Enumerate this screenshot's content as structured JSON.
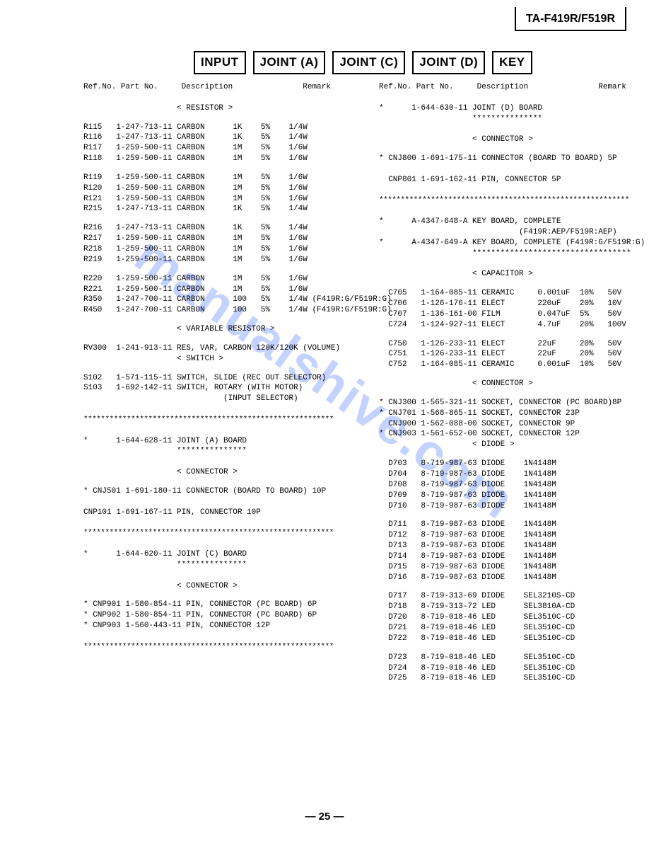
{
  "model": "TA-F419R/F519R",
  "tabs": [
    "INPUT",
    "JOINT (A)",
    "JOINT (C)",
    "JOINT (D)",
    "KEY"
  ],
  "watermark": "manualshive.com",
  "pageNumber": "— 25 —",
  "headers": {
    "refNo": "Ref.No.",
    "partNo": "Part No.",
    "description": "Description",
    "remark": "Remark"
  },
  "leftColumn": {
    "sections": [
      {
        "type": "heading",
        "text": "< RESISTOR >"
      },
      {
        "type": "rows",
        "rows": [
          [
            "R115",
            "1-247-713-11",
            "CARBON",
            "1K",
            "5%",
            "1/4W"
          ],
          [
            "R116",
            "1-247-713-11",
            "CARBON",
            "1K",
            "5%",
            "1/4W"
          ],
          [
            "R117",
            "1-259-500-11",
            "CARBON",
            "1M",
            "5%",
            "1/6W"
          ],
          [
            "R118",
            "1-259-500-11",
            "CARBON",
            "1M",
            "5%",
            "1/6W"
          ]
        ]
      },
      {
        "type": "rows",
        "rows": [
          [
            "R119",
            "1-259-500-11",
            "CARBON",
            "1M",
            "5%",
            "1/6W"
          ],
          [
            "R120",
            "1-259-500-11",
            "CARBON",
            "1M",
            "5%",
            "1/6W"
          ],
          [
            "R121",
            "1-259-500-11",
            "CARBON",
            "1M",
            "5%",
            "1/6W"
          ],
          [
            "R215",
            "1-247-713-11",
            "CARBON",
            "1K",
            "5%",
            "1/4W"
          ]
        ]
      },
      {
        "type": "rows",
        "rows": [
          [
            "R216",
            "1-247-713-11",
            "CARBON",
            "1K",
            "5%",
            "1/4W"
          ],
          [
            "R217",
            "1-259-500-11",
            "CARBON",
            "1M",
            "5%",
            "1/6W"
          ],
          [
            "R218",
            "1-259-500-11",
            "CARBON",
            "1M",
            "5%",
            "1/6W"
          ],
          [
            "R219",
            "1-259-500-11",
            "CARBON",
            "1M",
            "5%",
            "1/6W"
          ]
        ]
      },
      {
        "type": "rows",
        "rows": [
          [
            "R220",
            "1-259-500-11",
            "CARBON",
            "1M",
            "5%",
            "1/6W"
          ],
          [
            "R221",
            "1-259-500-11",
            "CARBON",
            "1M",
            "5%",
            "1/6W"
          ],
          [
            "R350",
            "1-247-700-11",
            "CARBON",
            "100",
            "5%",
            "1/4W (F419R:G/F519R:G)"
          ],
          [
            "R450",
            "1-247-700-11",
            "CARBON",
            "100",
            "5%",
            "1/4W (F419R:G/F519R:G)"
          ]
        ]
      },
      {
        "type": "heading",
        "text": "< VARIABLE RESISTOR >"
      },
      {
        "type": "textrow",
        "text": "RV300  1-241-913-11 RES, VAR, CARBON 120K/120K (VOLUME)"
      },
      {
        "type": "heading",
        "text": "< SWITCH >"
      },
      {
        "type": "textrow",
        "text": "S102   1-571-115-11 SWITCH, SLIDE (REC OUT SELECTOR)"
      },
      {
        "type": "textrow",
        "text": "S103   1-692-142-11 SWITCH, ROTARY (WITH MOTOR)"
      },
      {
        "type": "textright",
        "text": "(INPUT SELECTOR)"
      },
      {
        "type": "sep"
      },
      {
        "type": "textrow",
        "text": "*      1-644-628-11 JOINT (A) BOARD"
      },
      {
        "type": "stars",
        "text": "***************"
      },
      {
        "type": "heading",
        "text": "< CONNECTOR >"
      },
      {
        "type": "textrow",
        "text": "* CNJ501 1-691-180-11 CONNECTOR (BOARD TO BOARD) 10P"
      },
      {
        "type": "gap"
      },
      {
        "type": "textrow",
        "text": "CNP101 1-691-167-11 PIN, CONNECTOR 10P"
      },
      {
        "type": "sep"
      },
      {
        "type": "textrow",
        "text": "*      1-644-620-11 JOINT (C) BOARD"
      },
      {
        "type": "stars",
        "text": "***************"
      },
      {
        "type": "heading",
        "text": "< CONNECTOR >"
      },
      {
        "type": "textrow",
        "text": "* CNP901 1-580-854-11 PIN, CONNECTOR (PC BOARD) 6P"
      },
      {
        "type": "textrow",
        "text": "* CNP902 1-580-854-11 PIN, CONNECTOR (PC BOARD) 6P"
      },
      {
        "type": "textrow",
        "text": "* CNP903 1-560-443-11 PIN, CONNECTOR 12P"
      },
      {
        "type": "sep"
      }
    ]
  },
  "rightColumn": {
    "sections": [
      {
        "type": "textrow",
        "text": "*      1-644-630-11 JOINT (D) BOARD"
      },
      {
        "type": "stars",
        "text": "***************"
      },
      {
        "type": "heading",
        "text": "< CONNECTOR >"
      },
      {
        "type": "textrow",
        "text": "* CNJ800 1-691-175-11 CONNECTOR (BOARD TO BOARD) 5P"
      },
      {
        "type": "gap"
      },
      {
        "type": "textrow",
        "text": "  CNP801 1-691-162-11 PIN, CONNECTOR 5P"
      },
      {
        "type": "sep"
      },
      {
        "type": "textrow",
        "text": "*      A-4347-648-A KEY BOARD, COMPLETE"
      },
      {
        "type": "textright",
        "text": "(F419R:AEP/F519R:AEP)"
      },
      {
        "type": "textrow",
        "text": "*      A-4347-649-A KEY BOARD, COMPLETE (F419R:G/F519R:G)"
      },
      {
        "type": "starsright",
        "text": "**********************************"
      },
      {
        "type": "heading",
        "text": "< CAPACITOR >"
      },
      {
        "type": "caprows",
        "rows": [
          [
            "C705",
            "1-164-085-11",
            "CERAMIC",
            "0.001uF",
            "10%",
            "50V"
          ],
          [
            "C706",
            "1-126-176-11",
            "ELECT",
            "220uF",
            "20%",
            "10V"
          ],
          [
            "C707",
            "1-136-161-00",
            "FILM",
            "0.047uF",
            "5%",
            "50V"
          ],
          [
            "C724",
            "1-124-927-11",
            "ELECT",
            "4.7uF",
            "20%",
            "100V"
          ]
        ]
      },
      {
        "type": "caprows",
        "rows": [
          [
            "C750",
            "1-126-233-11",
            "ELECT",
            "22uF",
            "20%",
            "50V"
          ],
          [
            "C751",
            "1-126-233-11",
            "ELECT",
            "22uF",
            "20%",
            "50V"
          ],
          [
            "C752",
            "1-164-085-11",
            "CERAMIC",
            "0.001uF",
            "10%",
            "50V"
          ]
        ]
      },
      {
        "type": "heading",
        "text": "< CONNECTOR >"
      },
      {
        "type": "textrow",
        "text": "* CNJ300 1-565-321-11 SOCKET, CONNECTOR (PC BOARD)8P"
      },
      {
        "type": "textrow",
        "text": "* CNJ701 1-568-865-11 SOCKET, CONNECTOR 23P"
      },
      {
        "type": "textrow",
        "text": "  CNJ900 1-562-088-00 SOCKET, CONNECTOR 9P"
      },
      {
        "type": "textrow",
        "text": "* CNJ903 1-561-652-00 SOCKET, CONNECTOR 12P"
      },
      {
        "type": "heading",
        "text": "< DIODE >"
      },
      {
        "type": "dioderows",
        "rows": [
          [
            "D703",
            "8-719-987-63",
            "DIODE",
            "1N4148M"
          ],
          [
            "D704",
            "8-719-987-63",
            "DIODE",
            "1N4148M"
          ],
          [
            "D708",
            "8-719-987-63",
            "DIODE",
            "1N4148M"
          ],
          [
            "D709",
            "8-719-987-63",
            "DIODE",
            "1N4148M"
          ],
          [
            "D710",
            "8-719-987-63",
            "DIODE",
            "1N4148M"
          ]
        ]
      },
      {
        "type": "dioderows",
        "rows": [
          [
            "D711",
            "8-719-987-63",
            "DIODE",
            "1N4148M"
          ],
          [
            "D712",
            "8-719-987-63",
            "DIODE",
            "1N4148M"
          ],
          [
            "D713",
            "8-719-987-63",
            "DIODE",
            "1N4148M"
          ],
          [
            "D714",
            "8-719-987-63",
            "DIODE",
            "1N4148M"
          ],
          [
            "D715",
            "8-719-987-63",
            "DIODE",
            "1N4148M"
          ],
          [
            "D716",
            "8-719-987-63",
            "DIODE",
            "1N4148M"
          ]
        ]
      },
      {
        "type": "dioderows",
        "rows": [
          [
            "D717",
            "8-719-313-69",
            "DIODE",
            "SEL3210S-CD"
          ],
          [
            "D718",
            "8-719-313-72",
            "LED",
            "SEL3810A-CD"
          ],
          [
            "D720",
            "8-719-018-46",
            "LED",
            "SEL3510C-CD"
          ],
          [
            "D721",
            "8-719-018-46",
            "LED",
            "SEL3510C-CD"
          ],
          [
            "D722",
            "8-719-018-46",
            "LED",
            "SEL3510C-CD"
          ]
        ]
      },
      {
        "type": "dioderows",
        "rows": [
          [
            "D723",
            "8-719-018-46",
            "LED",
            "SEL3510C-CD"
          ],
          [
            "D724",
            "8-719-018-46",
            "LED",
            "SEL3510C-CD"
          ],
          [
            "D725",
            "8-719-018-46",
            "LED",
            "SEL3510C-CD"
          ]
        ]
      }
    ]
  }
}
